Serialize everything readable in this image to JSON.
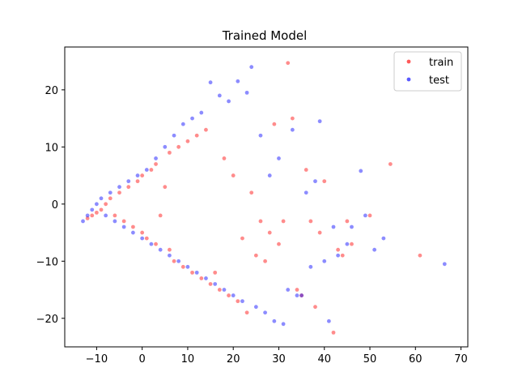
{
  "chart_data": {
    "type": "scatter",
    "title": "Trained Model",
    "xlabel": "",
    "ylabel": "",
    "xlim": [
      -17,
      71.5
    ],
    "ylim": [
      -25,
      27.5
    ],
    "xticks": [
      -10,
      0,
      10,
      20,
      30,
      40,
      50,
      60,
      70
    ],
    "yticks": [
      -20,
      -10,
      0,
      10,
      20
    ],
    "grid": false,
    "legend": "top-right",
    "series": [
      {
        "name": "train",
        "color": "#ff0000",
        "points": [
          [
            -12,
            -2.5
          ],
          [
            -11,
            -2
          ],
          [
            -10,
            -1.5
          ],
          [
            -9,
            -1
          ],
          [
            -8,
            0
          ],
          [
            -7,
            1
          ],
          [
            -6,
            -2
          ],
          [
            -5,
            2
          ],
          [
            -4,
            -3
          ],
          [
            -3,
            3
          ],
          [
            -2,
            -4
          ],
          [
            -1,
            4
          ],
          [
            0,
            -5
          ],
          [
            0,
            5
          ],
          [
            1,
            -6
          ],
          [
            2,
            6
          ],
          [
            3,
            -7
          ],
          [
            3,
            7
          ],
          [
            4,
            -2
          ],
          [
            5,
            3
          ],
          [
            6,
            -8
          ],
          [
            6,
            9
          ],
          [
            7,
            -10
          ],
          [
            8,
            10
          ],
          [
            9,
            -11
          ],
          [
            10,
            11
          ],
          [
            11,
            -12
          ],
          [
            12,
            12
          ],
          [
            13,
            -13
          ],
          [
            14,
            13
          ],
          [
            15,
            -14
          ],
          [
            16,
            -12
          ],
          [
            17,
            -15
          ],
          [
            18,
            8
          ],
          [
            19,
            -16
          ],
          [
            20,
            5
          ],
          [
            21,
            -17
          ],
          [
            22,
            -6
          ],
          [
            23,
            -19
          ],
          [
            24,
            2
          ],
          [
            25,
            -9
          ],
          [
            26,
            -3
          ],
          [
            27,
            -10
          ],
          [
            28,
            -5
          ],
          [
            29,
            14
          ],
          [
            30,
            -7
          ],
          [
            31,
            -3
          ],
          [
            32,
            24.7
          ],
          [
            33,
            15
          ],
          [
            34,
            -15
          ],
          [
            35,
            -16
          ],
          [
            36,
            6
          ],
          [
            37,
            -3
          ],
          [
            38,
            -18
          ],
          [
            39,
            -5
          ],
          [
            40,
            4
          ],
          [
            42,
            -22.5
          ],
          [
            43,
            -8
          ],
          [
            44,
            -9
          ],
          [
            45,
            -3
          ],
          [
            46,
            -7
          ],
          [
            50,
            -2
          ],
          [
            54.5,
            7
          ],
          [
            61,
            -9
          ]
        ]
      },
      {
        "name": "test",
        "color": "#0000ff",
        "points": [
          [
            -13,
            -3
          ],
          [
            -12,
            -2
          ],
          [
            -11,
            -1
          ],
          [
            -10,
            0
          ],
          [
            -9,
            1
          ],
          [
            -8,
            -2
          ],
          [
            -7,
            2
          ],
          [
            -6,
            -3
          ],
          [
            -5,
            3
          ],
          [
            -4,
            -4
          ],
          [
            -3,
            4
          ],
          [
            -2,
            -5
          ],
          [
            -1,
            5
          ],
          [
            0,
            -6
          ],
          [
            1,
            6
          ],
          [
            2,
            -7
          ],
          [
            3,
            8
          ],
          [
            4,
            -8
          ],
          [
            5,
            10
          ],
          [
            6,
            -9
          ],
          [
            7,
            12
          ],
          [
            8,
            -10
          ],
          [
            9,
            14
          ],
          [
            10,
            -11
          ],
          [
            11,
            15
          ],
          [
            12,
            -12
          ],
          [
            13,
            16
          ],
          [
            14,
            -13
          ],
          [
            15,
            21.3
          ],
          [
            16,
            -14
          ],
          [
            17,
            19
          ],
          [
            18,
            -15
          ],
          [
            19,
            18
          ],
          [
            20,
            -16
          ],
          [
            21,
            21.5
          ],
          [
            22,
            -17
          ],
          [
            23,
            19.5
          ],
          [
            24,
            24
          ],
          [
            25,
            -18
          ],
          [
            26,
            12
          ],
          [
            27,
            -19
          ],
          [
            28,
            5
          ],
          [
            29,
            -20.5
          ],
          [
            30,
            8
          ],
          [
            31,
            -21
          ],
          [
            32,
            -15
          ],
          [
            33,
            13
          ],
          [
            34,
            -16
          ],
          [
            35,
            -16
          ],
          [
            36,
            2
          ],
          [
            37,
            -11
          ],
          [
            38,
            4
          ],
          [
            39,
            14.5
          ],
          [
            40,
            -10
          ],
          [
            41,
            -20.5
          ],
          [
            42,
            -4
          ],
          [
            43,
            -9
          ],
          [
            45,
            -7
          ],
          [
            46,
            -4
          ],
          [
            48,
            5.8
          ],
          [
            49,
            -2
          ],
          [
            51,
            -8
          ],
          [
            53,
            -6
          ],
          [
            66.4,
            -10.5
          ]
        ]
      }
    ]
  }
}
